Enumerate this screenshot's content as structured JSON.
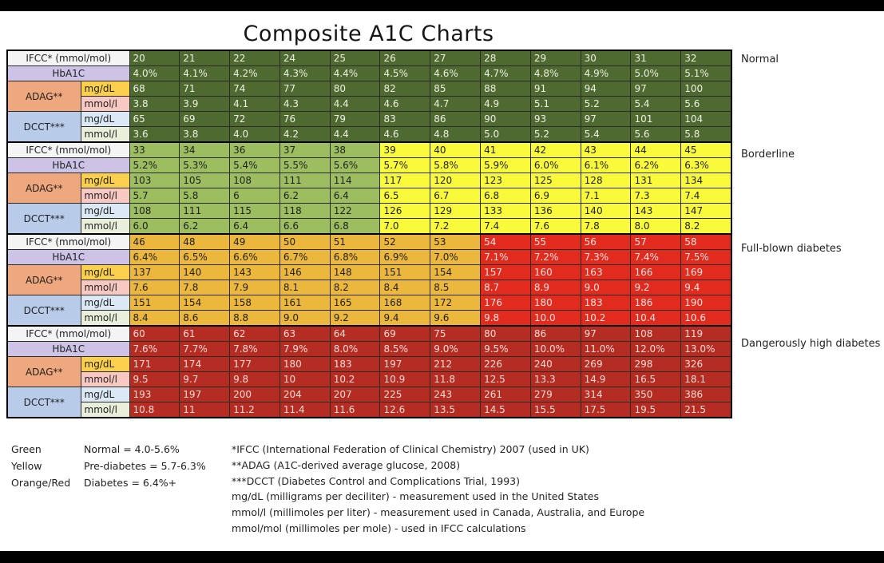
{
  "title": "Composite A1C Charts",
  "palette": {
    "darkgreen": {
      "bg": "#4f6a30",
      "fg": "#eef0e4"
    },
    "lightgreen": {
      "bg": "#9cbd60",
      "fg": "#1f1f1f"
    },
    "yellow": {
      "bg": "#fafa3c",
      "fg": "#1f1f1f"
    },
    "orange": {
      "bg": "#ecb73d",
      "fg": "#1f1f1f"
    },
    "red": {
      "bg": "#e02b1e",
      "fg": "#f7e4e1"
    },
    "brickred": {
      "bg": "#b52d22",
      "fg": "#f2dbd7"
    }
  },
  "header_colors": {
    "ifcc": {
      "bg": "#f4f4f4",
      "fg": "#1f1f1f"
    },
    "hba1c": {
      "bg": "#ccc3e6",
      "fg": "#1f1f1f"
    },
    "adag": {
      "bg": "#efa77d",
      "fg": "#1f1f1f"
    },
    "gold": {
      "bg": "#fccf4d",
      "fg": "#1f1f1f"
    },
    "pink": {
      "bg": "#f8c8c2",
      "fg": "#1f1f1f"
    },
    "dcct": {
      "bg": "#b8cce9",
      "fg": "#1f1f1f"
    },
    "lightblue": {
      "bg": "#dbe8f6",
      "fg": "#1f1f1f"
    },
    "palegreen": {
      "bg": "#e9efda",
      "fg": "#1f1f1f"
    }
  },
  "chart_data": {
    "type": "table",
    "title": "Composite A1C Charts",
    "row_headers": {
      "ifcc": "IFCC* (mmol/mol)",
      "hba1c": "HbA1C",
      "adag": "ADAG**",
      "dcct": "DCCT***",
      "mgdl": "mg/dL",
      "mmoll": "mmol/l"
    },
    "zones": [
      {
        "id": "normal",
        "label": "Normal",
        "col_colors": [
          "darkgreen",
          "darkgreen",
          "darkgreen",
          "darkgreen",
          "darkgreen",
          "darkgreen",
          "darkgreen",
          "darkgreen",
          "darkgreen",
          "darkgreen",
          "darkgreen",
          "darkgreen"
        ],
        "rows": {
          "ifcc": [
            "20",
            "21",
            "22",
            "24",
            "25",
            "26",
            "27",
            "28",
            "29",
            "30",
            "31",
            "32"
          ],
          "hba1c": [
            "4.0%",
            "4.1%",
            "4.2%",
            "4.3%",
            "4.4%",
            "4.5%",
            "4.6%",
            "4.7%",
            "4.8%",
            "4.9%",
            "5.0%",
            "5.1%"
          ],
          "adag_mgdl": [
            "68",
            "71",
            "74",
            "77",
            "80",
            "82",
            "85",
            "88",
            "91",
            "94",
            "97",
            "100"
          ],
          "adag_mmoll": [
            "3.8",
            "3.9",
            "4.1",
            "4.3",
            "4.4",
            "4.6",
            "4.7",
            "4.9",
            "5.1",
            "5.2",
            "5.4",
            "5.6"
          ],
          "dcct_mgdl": [
            "65",
            "69",
            "72",
            "76",
            "79",
            "83",
            "86",
            "90",
            "93",
            "97",
            "101",
            "104"
          ],
          "dcct_mmoll": [
            "3.6",
            "3.8",
            "4.0",
            "4.2",
            "4.4",
            "4.6",
            "4.8",
            "5.0",
            "5.2",
            "5.4",
            "5.6",
            "5.8"
          ]
        }
      },
      {
        "id": "borderline",
        "label": "Borderline",
        "col_colors": [
          "lightgreen",
          "lightgreen",
          "lightgreen",
          "lightgreen",
          "lightgreen",
          "yellow",
          "yellow",
          "yellow",
          "yellow",
          "yellow",
          "yellow",
          "yellow"
        ],
        "rows": {
          "ifcc": [
            "33",
            "34",
            "36",
            "37",
            "38",
            "39",
            "40",
            "41",
            "42",
            "43",
            "44",
            "45"
          ],
          "hba1c": [
            "5.2%",
            "5.3%",
            "5.4%",
            "5.5%",
            "5.6%",
            "5.7%",
            "5.8%",
            "5.9%",
            "6.0%",
            "6.1%",
            "6.2%",
            "6.3%"
          ],
          "adag_mgdl": [
            "103",
            "105",
            "108",
            "111",
            "114",
            "117",
            "120",
            "123",
            "125",
            "128",
            "131",
            "134"
          ],
          "adag_mmoll": [
            "5.7",
            "5.8",
            "6",
            "6.2",
            "6.4",
            "6.5",
            "6.7",
            "6.8",
            "6.9",
            "7.1",
            "7.3",
            "7.4"
          ],
          "dcct_mgdl": [
            "108",
            "111",
            "115",
            "118",
            "122",
            "126",
            "129",
            "133",
            "136",
            "140",
            "143",
            "147"
          ],
          "dcct_mmoll": [
            "6.0",
            "6.2",
            "6.4",
            "6.6",
            "6.8",
            "7.0",
            "7.2",
            "7.4",
            "7.6",
            "7.8",
            "8.0",
            "8.2"
          ]
        }
      },
      {
        "id": "fullblown",
        "label": "Full-blown diabetes",
        "col_colors": [
          "orange",
          "orange",
          "orange",
          "orange",
          "orange",
          "orange",
          "orange",
          "red",
          "red",
          "red",
          "red",
          "red"
        ],
        "rows": {
          "ifcc": [
            "46",
            "48",
            "49",
            "50",
            "51",
            "52",
            "53",
            "54",
            "55",
            "56",
            "57",
            "58"
          ],
          "hba1c": [
            "6.4%",
            "6.5%",
            "6.6%",
            "6.7%",
            "6.8%",
            "6.9%",
            "7.0%",
            "7.1%",
            "7.2%",
            "7.3%",
            "7.4%",
            "7.5%"
          ],
          "adag_mgdl": [
            "137",
            "140",
            "143",
            "146",
            "148",
            "151",
            "154",
            "157",
            "160",
            "163",
            "166",
            "169"
          ],
          "adag_mmoll": [
            "7.6",
            "7.8",
            "7.9",
            "8.1",
            "8.2",
            "8.4",
            "8.5",
            "8.7",
            "8.9",
            "9.0",
            "9.2",
            "9.4"
          ],
          "dcct_mgdl": [
            "151",
            "154",
            "158",
            "161",
            "165",
            "168",
            "172",
            "176",
            "180",
            "183",
            "186",
            "190"
          ],
          "dcct_mmoll": [
            "8.4",
            "8.6",
            "8.8",
            "9.0",
            "9.2",
            "9.4",
            "9.6",
            "9.8",
            "10.0",
            "10.2",
            "10.4",
            "10.6"
          ]
        }
      },
      {
        "id": "danger",
        "label": "Dangerously high diabetes",
        "col_colors": [
          "brickred",
          "brickred",
          "brickred",
          "brickred",
          "brickred",
          "brickred",
          "brickred",
          "brickred",
          "brickred",
          "brickred",
          "brickred",
          "brickred"
        ],
        "rows": {
          "ifcc": [
            "60",
            "61",
            "62",
            "63",
            "64",
            "69",
            "75",
            "80",
            "86",
            "97",
            "108",
            "119"
          ],
          "hba1c": [
            "7.6%",
            "7.7%",
            "7.8%",
            "7.9%",
            "8.0%",
            "8.5%",
            "9.0%",
            "9.5%",
            "10.0%",
            "11.0%",
            "12.0%",
            "13.0%"
          ],
          "adag_mgdl": [
            "171",
            "174",
            "177",
            "180",
            "183",
            "197",
            "212",
            "226",
            "240",
            "269",
            "298",
            "326"
          ],
          "adag_mmoll": [
            "9.5",
            "9.7",
            "9.8",
            "10",
            "10.2",
            "10.9",
            "11.8",
            "12.5",
            "13.3",
            "14.9",
            "16.5",
            "18.1"
          ],
          "dcct_mgdl": [
            "193",
            "197",
            "200",
            "204",
            "207",
            "225",
            "243",
            "261",
            "279",
            "314",
            "350",
            "386"
          ],
          "dcct_mmoll": [
            "10.8",
            "11",
            "11.2",
            "11.4",
            "11.6",
            "12.6",
            "13.5",
            "14.5",
            "15.5",
            "17.5",
            "19.5",
            "21.5"
          ]
        }
      }
    ]
  },
  "legend": [
    {
      "color": "Green",
      "meaning": "Normal = 4.0-5.6%"
    },
    {
      "color": "Yellow",
      "meaning": "Pre-diabetes = 5.7-6.3%"
    },
    {
      "color": "Orange/Red",
      "meaning": "Diabetes = 6.4%+"
    }
  ],
  "notes": [
    "*IFCC (International Federation of Clinical Chemistry) 2007 (used in UK)",
    "**ADAG (A1C-derived average glucose, 2008)",
    "***DCCT (Diabetes Control and Complications Trial, 1993)",
    "mg/dL (milligrams per deciliter) - measurement used in the United States",
    "mmol/l (millimoles per liter) - measurement used in Canada, Australia, and Europe",
    "mmol/mol (millimoles per mole) - used in IFCC calculations"
  ]
}
